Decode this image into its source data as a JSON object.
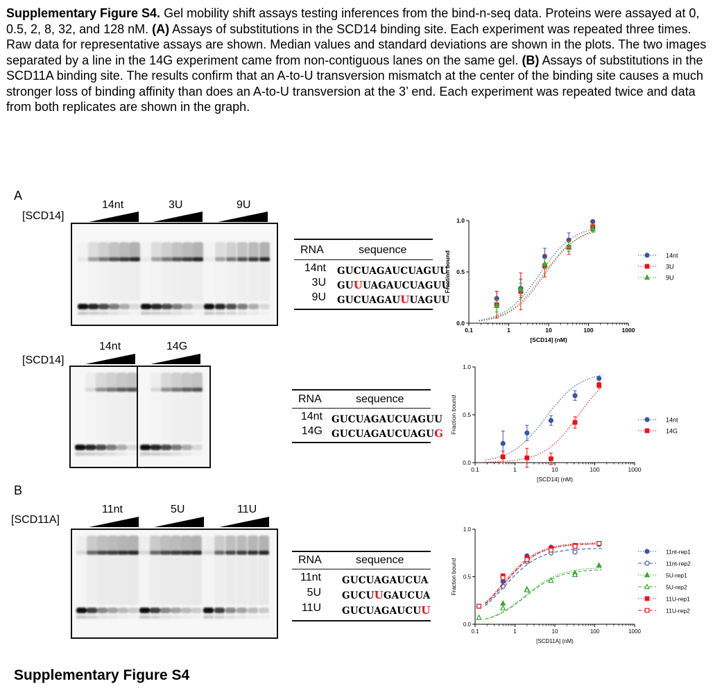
{
  "caption": {
    "title": "Supplementary Figure S4.",
    "text1": " Gel mobility shift assays testing inferences from the bind-n-seq data. Proteins were assayed at 0, 0.5, 2, 8, 32, and 128 nM. ",
    "labelA": "(A)",
    "text2": " Assays of substitutions in the SCD14 binding site. Each experiment was repeated three times. Raw data for representative assays are shown. Median values and standard deviations are shown in the plots. The two images separated by a line in the 14G experiment came from non-contiguous lanes on the same gel. ",
    "labelB": "(B)",
    "text3": " Assays of substitutions in the SCD11A binding site. The results confirm that an A-to-U transversion mismatch at the center of the binding site causes a much stronger loss of binding affinity than does an A-to-U transversion at the 3’ end. Each experiment was repeated twice and data from both replicates are shown in the graph."
  },
  "panelA": {
    "letter": "A",
    "gel1": {
      "conc_label": "[SCD14]",
      "groups": [
        "14nt",
        "3U",
        "9U"
      ]
    },
    "gel2": {
      "conc_label": "[SCD14]",
      "groups": [
        "14nt",
        "14G"
      ]
    },
    "table1": {
      "headers": [
        "RNA",
        "sequence"
      ],
      "rows": [
        {
          "name": "14nt",
          "pre": "GUCUAGAUCUAGUU",
          "mut": "",
          "post": ""
        },
        {
          "name": "3U",
          "pre": "GU",
          "mut": "U",
          "post": "UAGAUCUAGUU"
        },
        {
          "name": "9U",
          "pre": "GUCUAGAU",
          "mut": "U",
          "post": "UAGUU"
        }
      ]
    },
    "table2": {
      "headers": [
        "RNA",
        "sequence"
      ],
      "rows": [
        {
          "name": "14nt",
          "pre": "GUCUAGAUCUAGUU",
          "mut": "",
          "post": ""
        },
        {
          "name": "14G",
          "pre": "GUCUAGAUCUAGU",
          "mut": "G",
          "post": ""
        }
      ]
    }
  },
  "panelB": {
    "letter": "B",
    "gel": {
      "conc_label": "[SCD11A]",
      "groups": [
        "11nt",
        "5U",
        "11U"
      ]
    },
    "table": {
      "headers": [
        "RNA",
        "sequence"
      ],
      "rows": [
        {
          "name": "11nt",
          "pre": "GUCUAGAUCUA",
          "mut": "",
          "post": ""
        },
        {
          "name": "5U",
          "pre": "GUCU",
          "mut": "U",
          "post": "GAUCUA"
        },
        {
          "name": "11U",
          "pre": "GUCUAGAUCU",
          "mut": "U",
          "post": ""
        }
      ]
    }
  },
  "chart_data": [
    {
      "type": "scatter",
      "title": "",
      "xlabel": "[SCD14] (nM)",
      "ylabel": "Fraction bound",
      "xscale": "log",
      "xlim": [
        0.1,
        1000
      ],
      "ylim": [
        0,
        1.0
      ],
      "xticks": [
        "0.1",
        "1",
        "10",
        "100",
        "1000"
      ],
      "yticks": [
        "0.0",
        "0.5",
        "1.0"
      ],
      "legend": "right",
      "series": [
        {
          "name": "14nt",
          "color": "#3a55a4",
          "marker": "circle",
          "x": [
            0.5,
            2,
            8,
            32,
            128
          ],
          "y": [
            0.24,
            0.34,
            0.65,
            0.81,
            0.99
          ],
          "err": [
            0.07,
            0.09,
            0.08,
            0.07,
            0.0
          ],
          "fit_ec50": 6,
          "fit_top": 0.96
        },
        {
          "name": "3U",
          "color": "#e3151a",
          "marker": "square",
          "x": [
            0.5,
            2,
            8,
            32,
            128
          ],
          "y": [
            0.18,
            0.31,
            0.56,
            0.74,
            0.94
          ],
          "err": [
            0.13,
            0.18,
            0.11,
            0.07,
            0.04
          ],
          "fit_ec50": 8,
          "fit_top": 0.95
        },
        {
          "name": "9U",
          "color": "#3aa832",
          "marker": "triangle",
          "x": [
            0.5,
            2,
            8,
            32,
            128
          ],
          "y": [
            0.17,
            0.33,
            0.58,
            0.75,
            0.92
          ],
          "err": [
            0.06,
            0.06,
            0.05,
            0.05,
            0.03
          ],
          "fit_ec50": 7,
          "fit_top": 0.93
        }
      ]
    },
    {
      "type": "scatter",
      "title": "",
      "xlabel": "[SCD14] (nM)",
      "ylabel": "Fraction bound",
      "xscale": "log",
      "xlim": [
        0.1,
        1000
      ],
      "ylim": [
        0,
        1.0
      ],
      "xticks": [
        "0.1",
        "1",
        "10",
        "100",
        "1000"
      ],
      "yticks": [
        "0.0",
        "0.5",
        "1.0"
      ],
      "legend": "right",
      "series": [
        {
          "name": "14nt",
          "color": "#3a55a4",
          "marker": "circle",
          "x": [
            0.5,
            2,
            8,
            32,
            128
          ],
          "y": [
            0.2,
            0.31,
            0.44,
            0.7,
            0.88
          ],
          "err": [
            0.13,
            0.08,
            0.05,
            0.05,
            0.0
          ],
          "fit_ec50": 6,
          "fit_top": 0.95
        },
        {
          "name": "14G",
          "color": "#e3151a",
          "marker": "square",
          "x": [
            0.5,
            2,
            8,
            32,
            128
          ],
          "y": [
            0.06,
            0.05,
            0.04,
            0.42,
            0.81
          ],
          "err": [
            0.06,
            0.1,
            0.06,
            0.06,
            0.03
          ],
          "fit_ec50": 40,
          "fit_top": 1.0
        }
      ]
    },
    {
      "type": "scatter",
      "title": "",
      "xlabel": "[SCD11A] (nM)",
      "ylabel": "Fraction bound",
      "xscale": "log",
      "xlim": [
        0.1,
        1000
      ],
      "ylim": [
        0,
        1.0
      ],
      "xticks": [
        "0.1",
        "1",
        "10",
        "100",
        "1000"
      ],
      "yticks": [
        "0.0",
        "0.5",
        "1.0"
      ],
      "legend": "right",
      "series": [
        {
          "name": "11nt-rep1",
          "color": "#3a55a4",
          "marker": "circle",
          "open": false,
          "dash": "dot",
          "x": [
            0.125,
            0.5,
            2,
            8,
            32,
            128
          ],
          "y": [
            0.19,
            0.45,
            0.72,
            0.81,
            0.83,
            0.84
          ],
          "fit_ec50": 0.55,
          "fit_top": 0.85
        },
        {
          "name": "11nt-rep2",
          "color": "#3a55a4",
          "marker": "circle",
          "open": true,
          "dash": "dash",
          "x": [
            0.125,
            0.5,
            2,
            8,
            32
          ],
          "y": [
            0.19,
            0.4,
            0.66,
            0.75,
            0.76
          ],
          "fit_ec50": 0.55,
          "fit_top": 0.8
        },
        {
          "name": "5U-rep1",
          "color": "#3aa832",
          "marker": "triangle",
          "open": false,
          "dash": "dot",
          "x": [
            0.125,
            0.5,
            2,
            8,
            32,
            128
          ],
          "y": [
            0.07,
            0.22,
            0.37,
            0.46,
            0.54,
            0.62
          ],
          "fit_ec50": 1.8,
          "fit_top": 0.6
        },
        {
          "name": "5U-rep2",
          "color": "#3aa832",
          "marker": "triangle",
          "open": true,
          "dash": "dash",
          "x": [
            0.125,
            0.5,
            2,
            8,
            32
          ],
          "y": [
            0.07,
            0.17,
            0.36,
            0.46,
            0.52
          ],
          "fit_ec50": 1.8,
          "fit_top": 0.58
        },
        {
          "name": "11U-rep1",
          "color": "#e3151a",
          "marker": "square",
          "open": false,
          "dash": "dot",
          "x": [
            0.125,
            0.5,
            2,
            8,
            32,
            128
          ],
          "y": [
            0.19,
            0.51,
            0.7,
            0.8,
            0.83,
            0.85
          ],
          "fit_ec50": 0.5,
          "fit_top": 0.86
        },
        {
          "name": "11U-rep2",
          "color": "#e3151a",
          "marker": "square",
          "open": true,
          "dash": "dash",
          "x": [
            0.125,
            0.5,
            2,
            8,
            32,
            128
          ],
          "y": [
            0.19,
            0.49,
            0.68,
            0.78,
            0.82,
            0.85
          ],
          "fit_ec50": 0.52,
          "fit_top": 0.85
        }
      ]
    }
  ],
  "footer": "Supplementary Figure S4"
}
